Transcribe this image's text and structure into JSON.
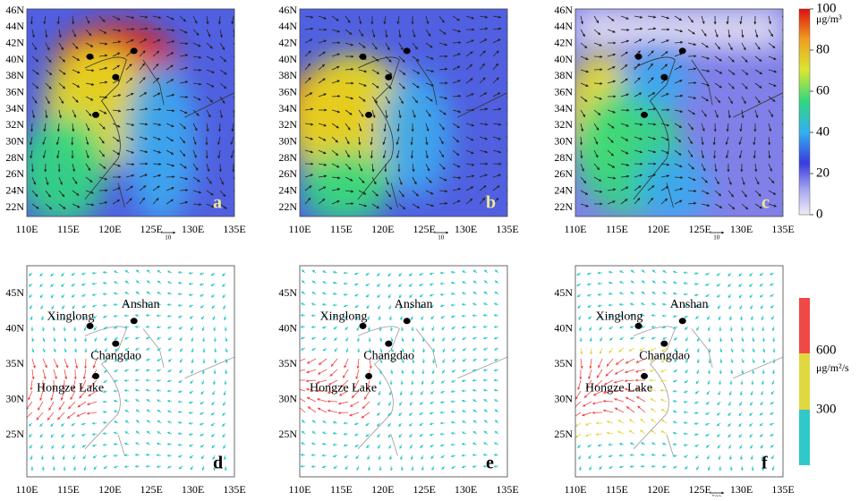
{
  "panels": [
    {
      "letter": "a",
      "lat_labels": [
        "46N",
        "44N",
        "42N",
        "40N",
        "38N",
        "36N",
        "34N",
        "32N",
        "30N",
        "28N",
        "26N",
        "24N",
        "22N"
      ],
      "lon_labels": [
        "110E",
        "115E",
        "120E",
        "125E",
        "130E",
        "135E"
      ],
      "vector_ref": "10"
    },
    {
      "letter": "b",
      "lat_labels": [
        "46N",
        "44N",
        "42N",
        "40N",
        "38N",
        "36N",
        "34N",
        "32N",
        "30N",
        "28N",
        "26N",
        "24N",
        "22N"
      ],
      "lon_labels": [
        "110E",
        "115E",
        "120E",
        "125E",
        "130E",
        "135E"
      ],
      "vector_ref": "10"
    },
    {
      "letter": "c",
      "lat_labels": [
        "46N",
        "44N",
        "42N",
        "40N",
        "38N",
        "36N",
        "34N",
        "32N",
        "30N",
        "28N",
        "26N",
        "24N",
        "22N"
      ],
      "lon_labels": [
        "110E",
        "115E",
        "120E",
        "125E",
        "130E",
        "135E"
      ],
      "vector_ref": "10"
    },
    {
      "letter": "d",
      "lat_labels": [
        "45N",
        "40N",
        "35N",
        "30N",
        "25N"
      ],
      "lon_labels": [
        "110E",
        "115E",
        "120E",
        "125E",
        "130E",
        "135E"
      ],
      "stations": [
        "Xinglong",
        "Anshan",
        "Changdao",
        "Hongze Lake"
      ]
    },
    {
      "letter": "e",
      "lat_labels": [
        "45N",
        "40N",
        "35N",
        "30N",
        "25N"
      ],
      "lon_labels": [
        "110E",
        "115E",
        "120E",
        "125E",
        "130E",
        "135E"
      ],
      "stations": [
        "Xinglong",
        "Anshan",
        "Changdao",
        "Hongze Lake"
      ]
    },
    {
      "letter": "f",
      "lat_labels": [
        "45N",
        "40N",
        "35N",
        "30N",
        "25N"
      ],
      "lon_labels": [
        "110E",
        "115E",
        "120E",
        "125E",
        "130E",
        "135E"
      ],
      "stations": [
        "Xinglong",
        "Anshan",
        "Changdao",
        "Hongze Lake"
      ],
      "vector_ref": "500"
    }
  ],
  "colorbar_concentration": {
    "unit": "μg/m³",
    "ticks": [
      0,
      20,
      40,
      60,
      80,
      100
    ]
  },
  "colorbar_flux": {
    "unit": "μg/m²/s",
    "ticks": [
      300,
      600
    ]
  }
}
